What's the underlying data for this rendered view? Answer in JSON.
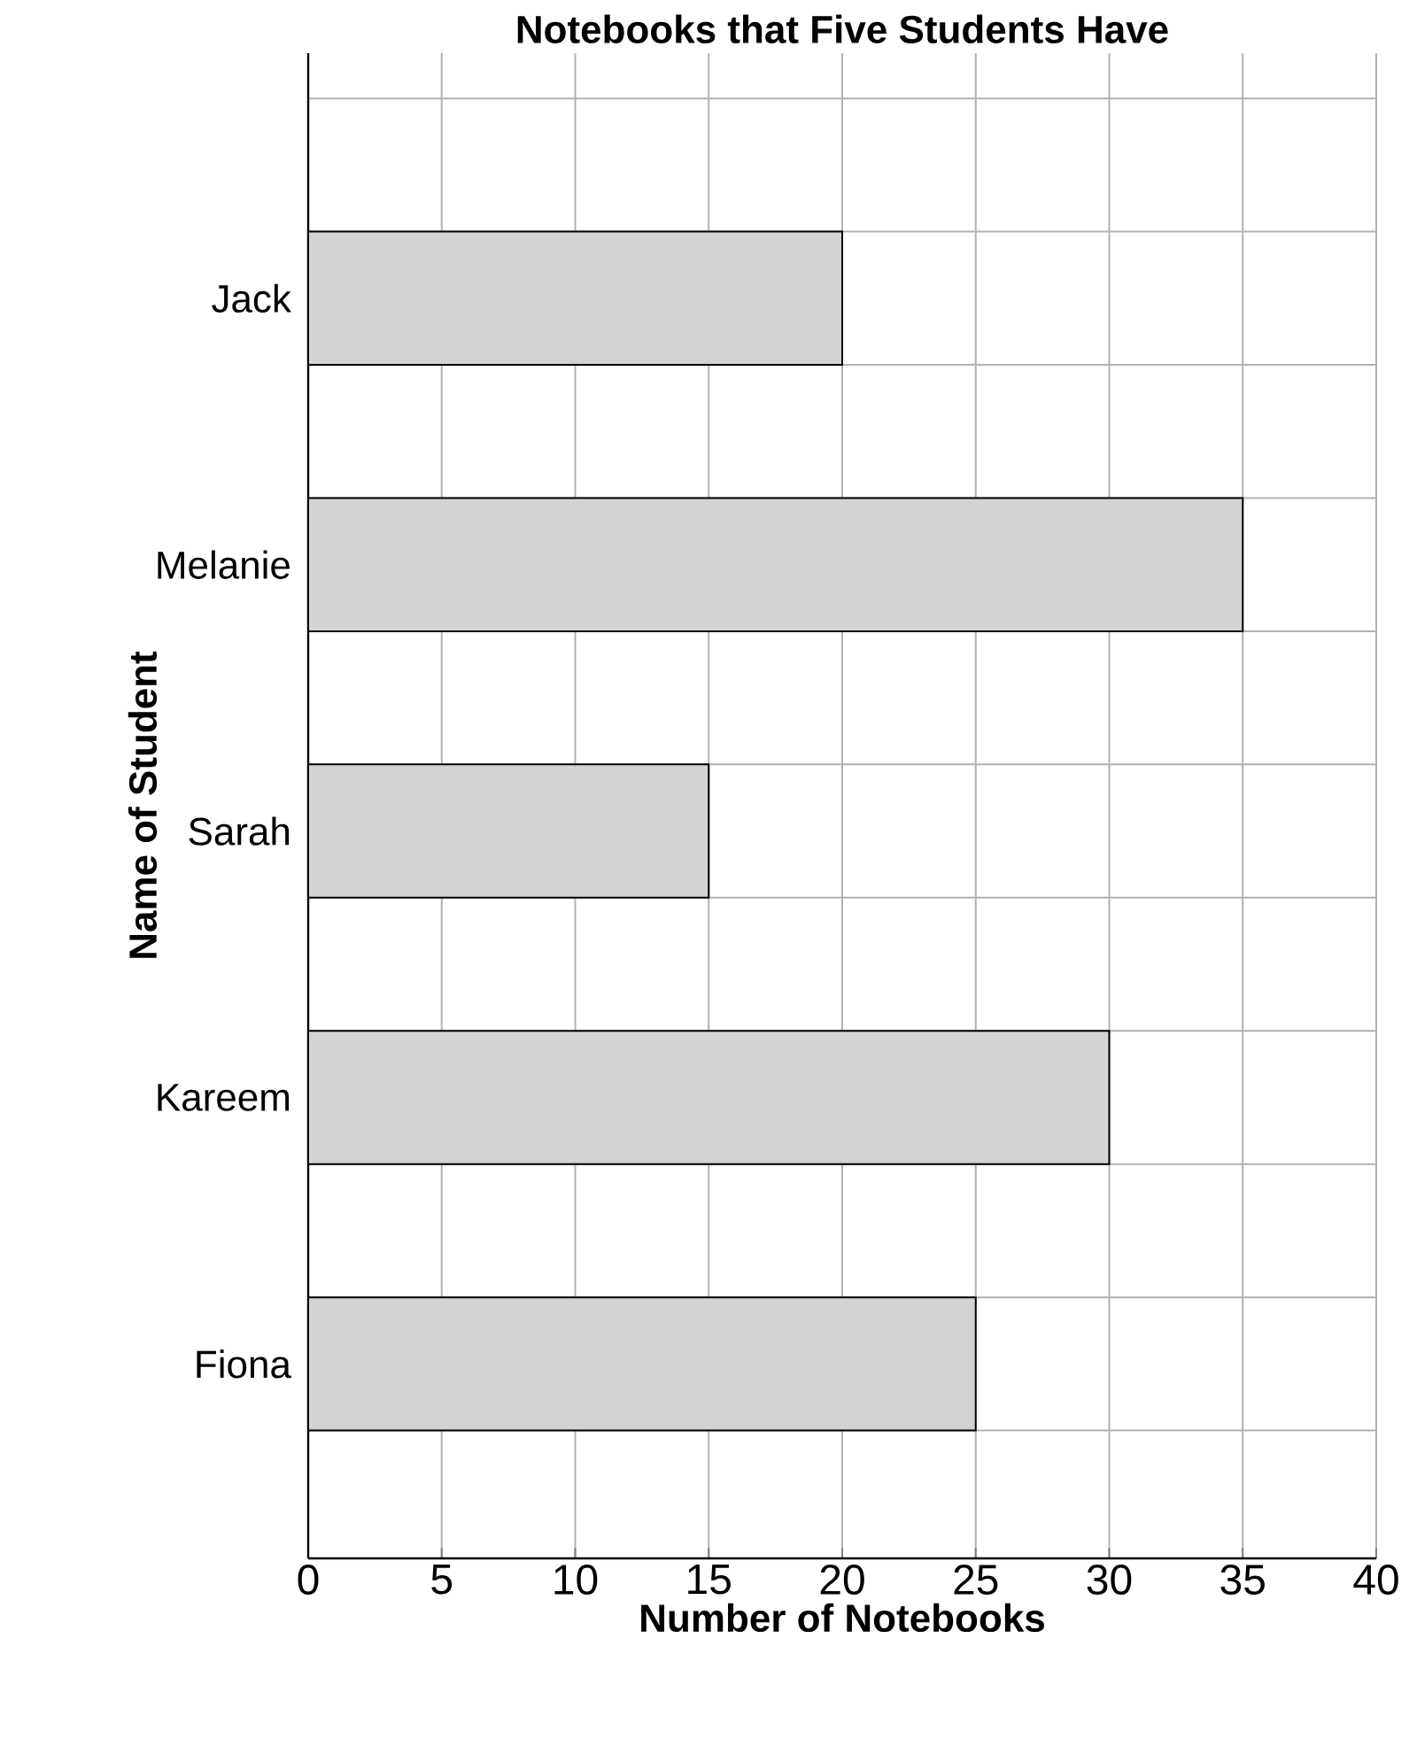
{
  "chart_data": {
    "type": "bar",
    "orientation": "horizontal",
    "title": "Notebooks that Five Students Have",
    "xlabel": "Number of Notebooks",
    "ylabel": "Name of Student",
    "categories": [
      "Jack",
      "Melanie",
      "Sarah",
      "Kareem",
      "Fiona"
    ],
    "values": [
      20,
      35,
      15,
      30,
      25
    ],
    "color": "#d3d3d3",
    "xlim": [
      0,
      40
    ],
    "xticks": [
      0,
      5,
      10,
      15,
      20,
      25,
      30,
      35,
      40
    ],
    "grid": true
  }
}
